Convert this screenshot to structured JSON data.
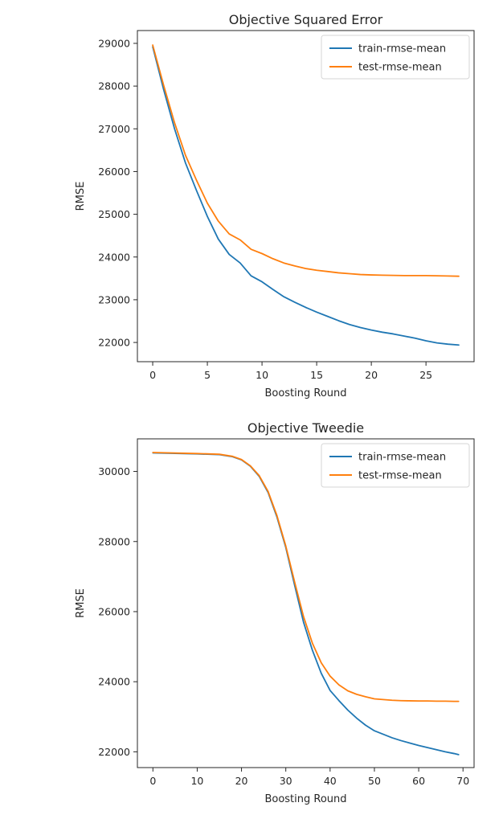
{
  "chart_data": [
    {
      "type": "line",
      "title": "Objective Squared Error",
      "xlabel": "Boosting Round",
      "ylabel": "RMSE",
      "xlim": [
        -1.4,
        29.4
      ],
      "ylim": [
        21550,
        29300
      ],
      "xticks": [
        0,
        5,
        10,
        15,
        20,
        25
      ],
      "yticks": [
        22000,
        23000,
        24000,
        25000,
        26000,
        27000,
        28000,
        29000
      ],
      "grid": false,
      "legend": "top-right",
      "x": [
        0,
        1,
        2,
        3,
        4,
        5,
        6,
        7,
        8,
        9,
        10,
        11,
        12,
        13,
        14,
        15,
        16,
        17,
        18,
        19,
        20,
        21,
        22,
        23,
        24,
        25,
        26,
        27,
        28
      ],
      "series": [
        {
          "name": "train-rmse-mean",
          "color": "#1f77b4",
          "values": [
            28920,
            27920,
            27000,
            26200,
            25560,
            24950,
            24420,
            24060,
            23860,
            23560,
            23420,
            23240,
            23070,
            22940,
            22820,
            22710,
            22610,
            22510,
            22420,
            22350,
            22290,
            22240,
            22200,
            22150,
            22100,
            22040,
            21990,
            21960,
            21940
          ]
        },
        {
          "name": "test-rmse-mean",
          "color": "#ff7f0e",
          "values": [
            28960,
            28020,
            27140,
            26380,
            25800,
            25260,
            24840,
            24540,
            24400,
            24180,
            24080,
            23960,
            23860,
            23790,
            23730,
            23690,
            23660,
            23630,
            23610,
            23590,
            23580,
            23575,
            23570,
            23565,
            23565,
            23565,
            23560,
            23555,
            23550
          ]
        }
      ]
    },
    {
      "type": "line",
      "title": "Objective Tweedie",
      "xlabel": "Boosting Round",
      "ylabel": "RMSE",
      "xlim": [
        -3.5,
        72.5
      ],
      "ylim": [
        21550,
        30930
      ],
      "xticks": [
        0,
        10,
        20,
        30,
        40,
        50,
        60,
        70
      ],
      "yticks": [
        22000,
        24000,
        26000,
        28000,
        30000
      ],
      "grid": false,
      "legend": "top-right",
      "x": [
        0,
        10,
        15,
        18,
        20,
        22,
        24,
        26,
        28,
        30,
        32,
        34,
        36,
        38,
        40,
        42,
        44,
        46,
        48,
        50,
        52,
        54,
        56,
        58,
        60,
        62,
        64,
        66,
        68,
        69
      ],
      "series": [
        {
          "name": "train-rmse-mean",
          "color": "#1f77b4",
          "values": [
            30530,
            30500,
            30480,
            30420,
            30330,
            30150,
            29860,
            29400,
            28700,
            27830,
            26750,
            25700,
            24900,
            24240,
            23750,
            23460,
            23190,
            22960,
            22760,
            22600,
            22500,
            22400,
            22320,
            22250,
            22180,
            22120,
            22060,
            22000,
            21950,
            21920
          ]
        },
        {
          "name": "test-rmse-mean",
          "color": "#ff7f0e",
          "values": [
            30540,
            30510,
            30490,
            30430,
            30340,
            30160,
            29880,
            29430,
            28740,
            27870,
            26840,
            25860,
            25100,
            24540,
            24160,
            23910,
            23740,
            23640,
            23570,
            23510,
            23490,
            23470,
            23460,
            23455,
            23450,
            23450,
            23445,
            23445,
            23440,
            23440
          ]
        }
      ]
    }
  ]
}
